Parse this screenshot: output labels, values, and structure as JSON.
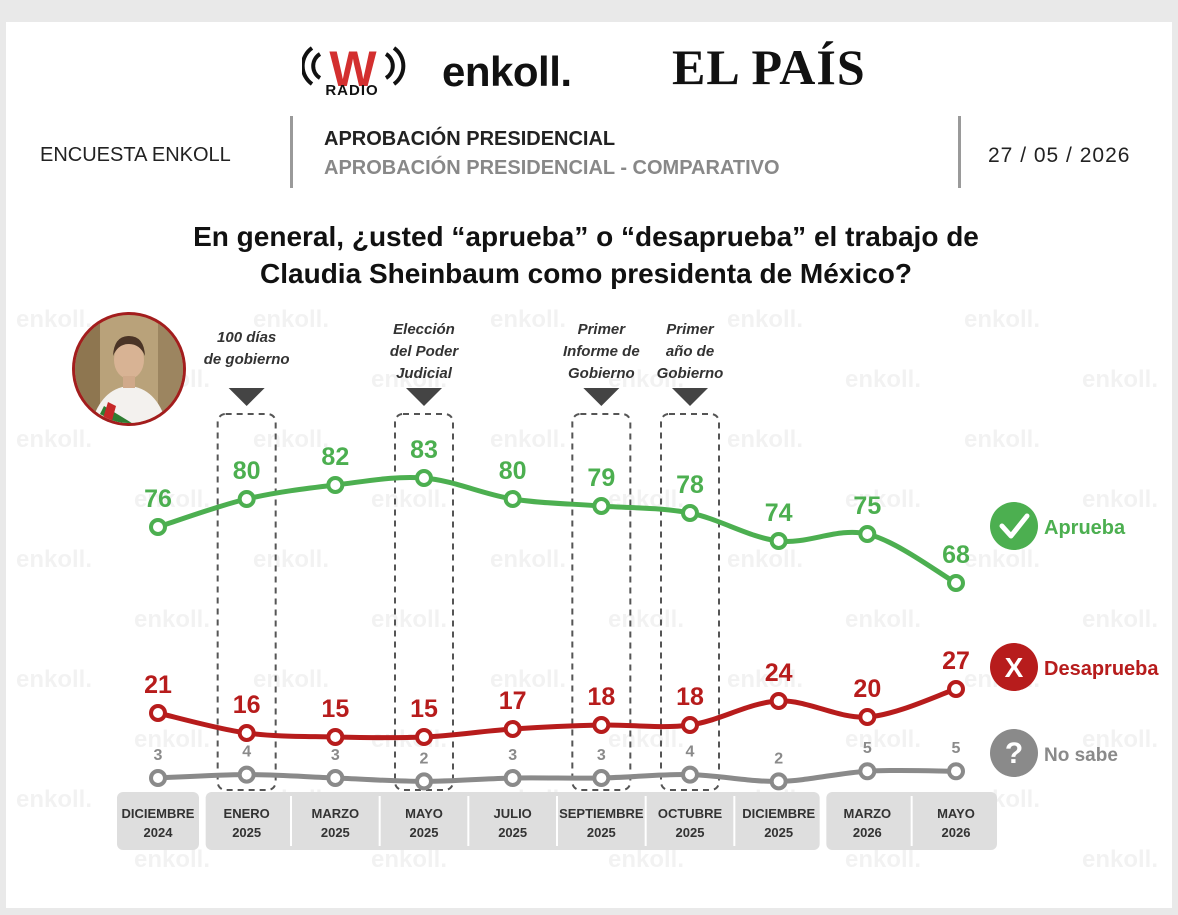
{
  "header": {
    "radio_label": "RADIO",
    "logo_w": "W",
    "enkoll_logo": "enkoll.",
    "elpais_logo": "EL PAÍS",
    "left_label": "ENCUESTA ENKOLL",
    "title": "APROBACIÓN PRESIDENCIAL",
    "subtitle": "APROBACIÓN PRESIDENCIAL - COMPARATIVO",
    "date": "27 / 05 / 2026"
  },
  "question": {
    "line1": "En general, ¿usted “aprueba” o “desaprueba” el trabajo de",
    "line2": "Claudia Sheinbaum como presidenta de México?"
  },
  "watermark": "enkoll.",
  "colors": {
    "approve": "#4caf50",
    "disapprove": "#b71c1c",
    "unsure": "#8a8a8a",
    "axis_box": "#dedede",
    "marker": "#444444"
  },
  "chart_data": {
    "type": "line",
    "categories": [
      [
        "DICIEMBRE",
        "2024"
      ],
      [
        "ENERO",
        "2025"
      ],
      [
        "MARZO",
        "2025"
      ],
      [
        "MAYO",
        "2025"
      ],
      [
        "JULIO",
        "2025"
      ],
      [
        "SEPTIEMBRE",
        "2025"
      ],
      [
        "OCTUBRE",
        "2025"
      ],
      [
        "DICIEMBRE",
        "2025"
      ],
      [
        "MARZO",
        "2026"
      ],
      [
        "MAYO",
        "2026"
      ]
    ],
    "series": [
      {
        "name": "Aprueba",
        "values": [
          76,
          80,
          82,
          83,
          80,
          79,
          78,
          74,
          75,
          68
        ],
        "icon": "check-icon"
      },
      {
        "name": "Desaprueba",
        "values": [
          21,
          16,
          15,
          15,
          17,
          18,
          18,
          24,
          20,
          27
        ],
        "icon": "x-icon"
      },
      {
        "name": "No sabe",
        "values": [
          3,
          4,
          3,
          2,
          3,
          3,
          4,
          2,
          5,
          5
        ],
        "icon": "question-icon"
      }
    ],
    "events": [
      {
        "index": 1,
        "label": [
          "100 días",
          "de gobierno"
        ]
      },
      {
        "index": 3,
        "label": [
          "Elección",
          "del Poder",
          "Judicial"
        ]
      },
      {
        "index": 5,
        "label": [
          "Primer",
          "Informe de",
          "Gobierno"
        ]
      },
      {
        "index": 6,
        "label": [
          "Primer",
          "año de",
          "Gobierno"
        ]
      }
    ],
    "legend": "right",
    "grid": false
  }
}
